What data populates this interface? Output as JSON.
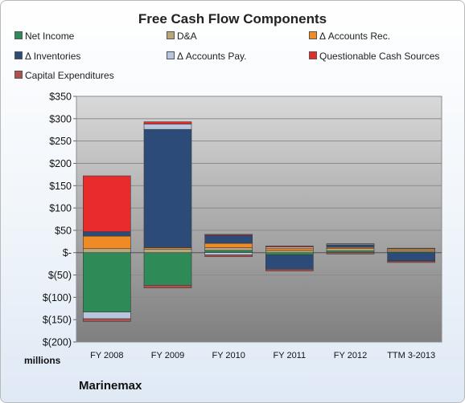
{
  "chart_data": {
    "type": "bar",
    "stacked": true,
    "title": "Free Cash Flow Components",
    "ylabel": "",
    "units_label": "millions",
    "company": "Marinemax",
    "ylim": [
      -200,
      350
    ],
    "yticks": [
      "$350",
      "$300",
      "$250",
      "$200",
      "$150",
      "$100",
      "$50",
      "$-",
      "$(50)",
      "$(100)",
      "$(150)",
      "$(200)"
    ],
    "grid": true,
    "legend_position": "top",
    "categories": [
      "FY 2008",
      "FY 2009",
      "FY 2010",
      "FY 2011",
      "FY 2012",
      "TTM 3-2013"
    ],
    "series": [
      {
        "name": "Net Income",
        "color": "#2e8b57",
        "values": [
          -133,
          -73,
          5,
          -5,
          4,
          2
        ]
      },
      {
        "name": "D&A",
        "color": "#b8a77a",
        "values": [
          9,
          8,
          6,
          5,
          5,
          4
        ]
      },
      {
        "name": "Δ Accounts Rec.",
        "color": "#f08a24",
        "values": [
          28,
          3,
          10,
          5,
          3,
          3
        ]
      },
      {
        "name": "Δ Inventories",
        "color": "#2c4b79",
        "values": [
          10,
          265,
          18,
          -32,
          5,
          -18
        ]
      },
      {
        "name": "Δ Accounts Pay.",
        "color": "#b7c6dc",
        "values": [
          -15,
          12,
          -5,
          3,
          2,
          -1
        ]
      },
      {
        "name": "Questionable Cash Sources",
        "color": "#e82b2b",
        "values": [
          125,
          5,
          2,
          2,
          1,
          1
        ]
      },
      {
        "name": "Capital Expenditures",
        "color": "#b24f4f",
        "values": [
          -6,
          -6,
          -4,
          -4,
          -3,
          -3
        ]
      }
    ]
  }
}
